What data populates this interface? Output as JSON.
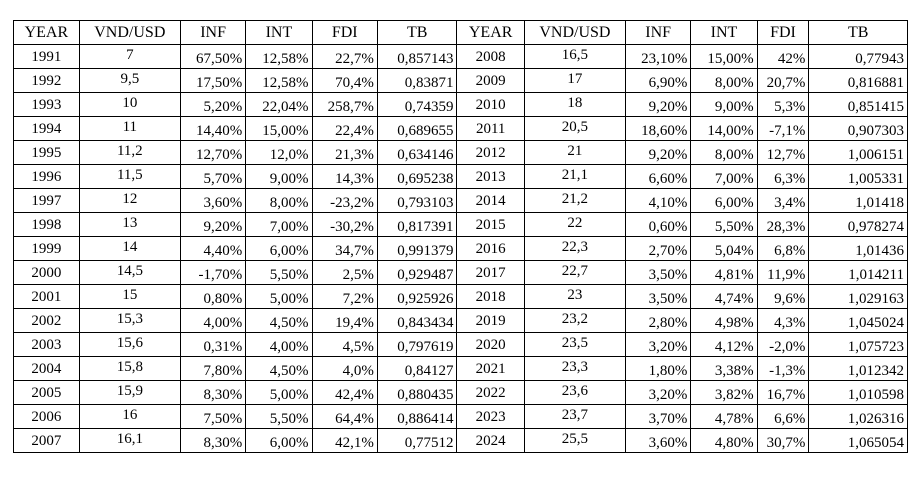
{
  "headers": [
    "YEAR",
    "VND/USD",
    "INF",
    "INT",
    "FDI",
    "TB",
    "YEAR",
    "VND/USD",
    "INF",
    "INT",
    "FDI",
    "TB"
  ],
  "rows": [
    [
      "1991",
      "7",
      "67,50%",
      "12,58%",
      "22,7%",
      "0,857143",
      "2008",
      "16,5",
      "23,10%",
      "15,00%",
      "42%",
      "0,77943"
    ],
    [
      "1992",
      "9,5",
      "17,50%",
      "12,58%",
      "70,4%",
      "0,83871",
      "2009",
      "17",
      "6,90%",
      "8,00%",
      "20,7%",
      "0,816881"
    ],
    [
      "1993",
      "10",
      "5,20%",
      "22,04%",
      "258,7%",
      "0,74359",
      "2010",
      "18",
      "9,20%",
      "9,00%",
      "5,3%",
      "0,851415"
    ],
    [
      "1994",
      "11",
      "14,40%",
      "15,00%",
      "22,4%",
      "0,689655",
      "2011",
      "20,5",
      "18,60%",
      "14,00%",
      "-7,1%",
      "0,907303"
    ],
    [
      "1995",
      "11,2",
      "12,70%",
      "12,0%",
      "21,3%",
      "0,634146",
      "2012",
      "21",
      "9,20%",
      "8,00%",
      "12,7%",
      "1,006151"
    ],
    [
      "1996",
      "11,5",
      "5,70%",
      "9,00%",
      "14,3%",
      "0,695238",
      "2013",
      "21,1",
      "6,60%",
      "7,00%",
      "6,3%",
      "1,005331"
    ],
    [
      "1997",
      "12",
      "3,60%",
      "8,00%",
      "-23,2%",
      "0,793103",
      "2014",
      "21,2",
      "4,10%",
      "6,00%",
      "3,4%",
      "1,01418"
    ],
    [
      "1998",
      "13",
      "9,20%",
      "7,00%",
      "-30,2%",
      "0,817391",
      "2015",
      "22",
      "0,60%",
      "5,50%",
      "28,3%",
      "0,978274"
    ],
    [
      "1999",
      "14",
      "4,40%",
      "6,00%",
      "34,7%",
      "0,991379",
      "2016",
      "22,3",
      "2,70%",
      "5,04%",
      "6,8%",
      "1,01436"
    ],
    [
      "2000",
      "14,5",
      "-1,70%",
      "5,50%",
      "2,5%",
      "0,929487",
      "2017",
      "22,7",
      "3,50%",
      "4,81%",
      "11,9%",
      "1,014211"
    ],
    [
      "2001",
      "15",
      "0,80%",
      "5,00%",
      "7,2%",
      "0,925926",
      "2018",
      "23",
      "3,50%",
      "4,74%",
      "9,6%",
      "1,029163"
    ],
    [
      "2002",
      "15,3",
      "4,00%",
      "4,50%",
      "19,4%",
      "0,843434",
      "2019",
      "23,2",
      "2,80%",
      "4,98%",
      "4,3%",
      "1,045024"
    ],
    [
      "2003",
      "15,6",
      "0,31%",
      "4,00%",
      "4,5%",
      "0,797619",
      "2020",
      "23,5",
      "3,20%",
      "4,12%",
      "-2,0%",
      "1,075723"
    ],
    [
      "2004",
      "15,8",
      "7,80%",
      "4,50%",
      "4,0%",
      "0,84127",
      "2021",
      "23,3",
      "1,80%",
      "3,38%",
      "-1,3%",
      "1,012342"
    ],
    [
      "2005",
      "15,9",
      "8,30%",
      "5,00%",
      "42,4%",
      "0,880435",
      "2022",
      "23,6",
      "3,20%",
      "3,82%",
      "16,7%",
      "1,010598"
    ],
    [
      "2006",
      "16",
      "7,50%",
      "5,50%",
      "64,4%",
      "0,886414",
      "2023",
      "23,7",
      "3,70%",
      "4,78%",
      "6,6%",
      "1,026316"
    ],
    [
      "2007",
      "16,1",
      "8,30%",
      "6,00%",
      "42,1%",
      "0,77512",
      "2024",
      "25,5",
      "3,60%",
      "4,80%",
      "30,7%",
      "1,065054"
    ]
  ]
}
